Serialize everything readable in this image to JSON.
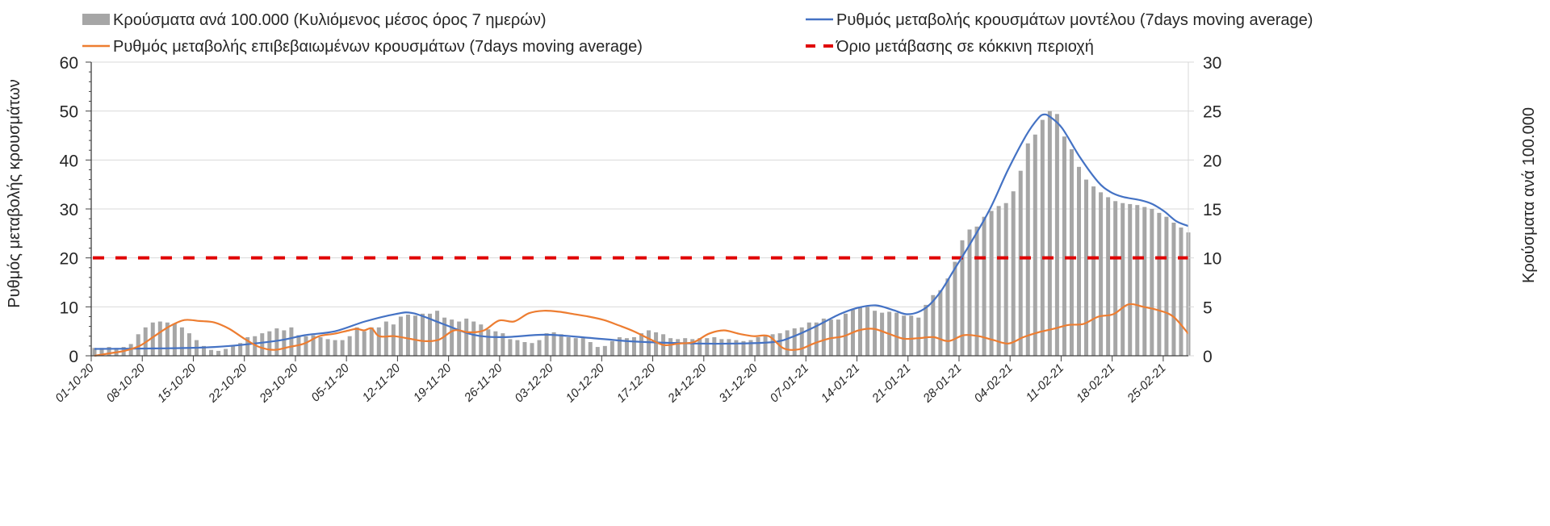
{
  "chart_data": {
    "type": "bar",
    "title": "",
    "legend_placement": "top",
    "legend": [
      {
        "key": "bars",
        "label": "Κρούσματα ανά 100.000 (Κυλιόμενος μέσος όρος 7 ημερών)",
        "color": "#a6a6a6",
        "marker": "bar"
      },
      {
        "key": "model",
        "label": "Ρυθμός μεταβολής κρουσμάτων μοντέλου (7days moving average)",
        "color": "#4472c4",
        "marker": "line"
      },
      {
        "key": "confirmed",
        "label": "Ρυθμός μεταβολής επιβεβαιωμένων κρουσμάτων (7days moving average)",
        "color": "#ed7d31",
        "marker": "line"
      },
      {
        "key": "threshold",
        "label": "Όριο μετάβασης σε κόκκινη περιοχή",
        "color": "#e00000",
        "marker": "dash"
      }
    ],
    "ylabel": "Ρυθμός μεταβολής κρουσμάτων",
    "y2label": "Κρούσματα ανά 100.000",
    "ylim": [
      0,
      60
    ],
    "y2lim": [
      0,
      30
    ],
    "yticks": [
      0,
      10,
      20,
      30,
      40,
      50,
      60
    ],
    "y2ticks": [
      0,
      5,
      10,
      15,
      20,
      25,
      30
    ],
    "grid": true,
    "x_start": "01-10-20",
    "n_days": 151,
    "xtick_labels": [
      "01-10-20",
      "08-10-20",
      "15-10-20",
      "22-10-20",
      "29-10-20",
      "05-11-20",
      "12-11-20",
      "19-11-20",
      "26-11-20",
      "03-12-20",
      "10-12-20",
      "17-12-20",
      "24-12-20",
      "31-12-20",
      "07-01-21",
      "14-01-21",
      "21-01-21",
      "28-01-21",
      "04-02-21",
      "11-02-21",
      "18-02-21",
      "25-02-21"
    ],
    "threshold_value": 20,
    "series": [
      {
        "name": "Κρούσματα ανά 100.000 (Κυλιόμενος μέσος όρος 7 ημερών)",
        "axis": "right",
        "type": "bar",
        "keyframes": [
          [
            0,
            0.8
          ],
          [
            1,
            0.8
          ],
          [
            2,
            0.9
          ],
          [
            3,
            0.8
          ],
          [
            4,
            0.9
          ],
          [
            5,
            1.2
          ],
          [
            6,
            2.2
          ],
          [
            7,
            2.9
          ],
          [
            8,
            3.4
          ],
          [
            9,
            3.5
          ],
          [
            10,
            3.4
          ],
          [
            11,
            3.3
          ],
          [
            12,
            2.9
          ],
          [
            13,
            2.3
          ],
          [
            14,
            1.6
          ],
          [
            15,
            1.0
          ],
          [
            16,
            0.6
          ],
          [
            17,
            0.5
          ],
          [
            18,
            0.7
          ],
          [
            19,
            1.0
          ],
          [
            20,
            1.3
          ],
          [
            21,
            1.9
          ],
          [
            22,
            2.0
          ],
          [
            23,
            2.3
          ],
          [
            24,
            2.5
          ],
          [
            25,
            2.8
          ],
          [
            26,
            2.6
          ],
          [
            27,
            2.9
          ],
          [
            28,
            2.1
          ],
          [
            29,
            2.0
          ],
          [
            30,
            2.1
          ],
          [
            31,
            1.9
          ],
          [
            32,
            1.7
          ],
          [
            33,
            1.6
          ],
          [
            34,
            1.6
          ],
          [
            35,
            2.0
          ],
          [
            36,
            2.9
          ],
          [
            37,
            2.5
          ],
          [
            38,
            2.9
          ],
          [
            39,
            2.9
          ],
          [
            40,
            3.5
          ],
          [
            41,
            3.2
          ],
          [
            42,
            4.0
          ],
          [
            43,
            4.2
          ],
          [
            44,
            4.1
          ],
          [
            45,
            4.3
          ],
          [
            46,
            4.3
          ],
          [
            47,
            4.6
          ],
          [
            48,
            3.9
          ],
          [
            49,
            3.7
          ],
          [
            50,
            3.5
          ],
          [
            51,
            3.8
          ],
          [
            52,
            3.5
          ],
          [
            53,
            3.2
          ],
          [
            54,
            2.7
          ],
          [
            55,
            2.5
          ],
          [
            56,
            2.3
          ],
          [
            57,
            1.7
          ],
          [
            58,
            1.6
          ],
          [
            59,
            1.4
          ],
          [
            60,
            1.3
          ],
          [
            61,
            1.6
          ],
          [
            62,
            2.3
          ],
          [
            63,
            2.4
          ],
          [
            64,
            2.2
          ],
          [
            65,
            1.9
          ],
          [
            66,
            1.8
          ],
          [
            67,
            1.8
          ],
          [
            68,
            1.4
          ],
          [
            69,
            0.9
          ],
          [
            70,
            1.0
          ],
          [
            71,
            1.5
          ],
          [
            72,
            1.9
          ],
          [
            73,
            1.8
          ],
          [
            74,
            1.9
          ],
          [
            75,
            2.3
          ],
          [
            76,
            2.6
          ],
          [
            77,
            2.4
          ],
          [
            78,
            2.2
          ],
          [
            79,
            1.8
          ],
          [
            80,
            1.7
          ],
          [
            81,
            1.8
          ],
          [
            82,
            1.7
          ],
          [
            83,
            1.8
          ],
          [
            84,
            1.8
          ],
          [
            85,
            1.9
          ],
          [
            86,
            1.7
          ],
          [
            87,
            1.7
          ],
          [
            88,
            1.6
          ],
          [
            89,
            1.5
          ],
          [
            90,
            1.6
          ],
          [
            91,
            1.9
          ],
          [
            92,
            2.1
          ],
          [
            93,
            2.2
          ],
          [
            94,
            2.3
          ],
          [
            95,
            2.6
          ],
          [
            96,
            2.8
          ],
          [
            97,
            2.9
          ],
          [
            98,
            3.4
          ],
          [
            99,
            3.4
          ],
          [
            100,
            3.8
          ],
          [
            101,
            3.7
          ],
          [
            102,
            3.7
          ],
          [
            103,
            4.3
          ],
          [
            104,
            4.7
          ],
          [
            105,
            5.0
          ],
          [
            106,
            5.0
          ],
          [
            107,
            4.6
          ],
          [
            108,
            4.4
          ],
          [
            109,
            4.5
          ],
          [
            110,
            4.4
          ],
          [
            111,
            4.1
          ],
          [
            112,
            4.1
          ],
          [
            113,
            3.9
          ],
          [
            114,
            5.2
          ],
          [
            115,
            6.2
          ],
          [
            116,
            6.7
          ],
          [
            117,
            7.9
          ],
          [
            118,
            9.6
          ],
          [
            119,
            11.8
          ],
          [
            120,
            12.9
          ],
          [
            121,
            13.2
          ],
          [
            122,
            14.2
          ],
          [
            123,
            14.8
          ],
          [
            124,
            15.3
          ],
          [
            125,
            15.6
          ],
          [
            126,
            16.8
          ],
          [
            127,
            18.9
          ],
          [
            128,
            21.7
          ],
          [
            129,
            22.6
          ],
          [
            130,
            24.1
          ],
          [
            131,
            25.0
          ],
          [
            132,
            24.7
          ],
          [
            133,
            22.4
          ],
          [
            134,
            21.1
          ],
          [
            135,
            19.3
          ],
          [
            136,
            18.0
          ],
          [
            137,
            17.3
          ],
          [
            138,
            16.7
          ],
          [
            139,
            16.2
          ],
          [
            140,
            15.8
          ],
          [
            141,
            15.6
          ],
          [
            142,
            15.5
          ],
          [
            143,
            15.4
          ],
          [
            144,
            15.2
          ],
          [
            145,
            15.0
          ],
          [
            146,
            14.6
          ],
          [
            147,
            14.2
          ],
          [
            148,
            13.6
          ],
          [
            149,
            13.1
          ],
          [
            150,
            12.6
          ]
        ]
      },
      {
        "name": "Ρυθμός μεταβολής κρουσμάτων μοντέλου (7days moving average)",
        "axis": "left",
        "type": "line",
        "keyframes": [
          [
            0,
            1.4
          ],
          [
            10,
            1.5
          ],
          [
            20,
            1.8
          ],
          [
            30,
            3.0
          ],
          [
            35,
            4.2
          ],
          [
            40,
            5.0
          ],
          [
            45,
            7.0
          ],
          [
            50,
            8.5
          ],
          [
            53,
            8.7
          ],
          [
            58,
            6.5
          ],
          [
            63,
            4.3
          ],
          [
            68,
            3.8
          ],
          [
            75,
            4.3
          ],
          [
            82,
            3.7
          ],
          [
            90,
            2.9
          ],
          [
            100,
            2.5
          ],
          [
            107,
            2.5
          ],
          [
            113,
            2.8
          ],
          [
            116,
            3.8
          ],
          [
            120,
            6.0
          ],
          [
            124,
            8.5
          ],
          [
            127,
            9.8
          ],
          [
            130,
            10.3
          ],
          [
            133,
            9.3
          ],
          [
            135,
            8.5
          ],
          [
            137,
            8.9
          ],
          [
            139,
            10.5
          ],
          [
            141,
            13.5
          ],
          [
            143,
            17.5
          ],
          [
            146,
            23.5
          ],
          [
            149,
            30.0
          ],
          [
            152,
            38.0
          ],
          [
            155,
            45.0
          ],
          [
            157,
            48.5
          ],
          [
            158,
            49.3
          ],
          [
            159,
            48.8
          ],
          [
            161,
            46.5
          ],
          [
            164,
            40.5
          ],
          [
            167,
            35.5
          ],
          [
            169,
            33.5
          ],
          [
            171,
            32.5
          ],
          [
            174,
            31.8
          ],
          [
            176,
            31.0
          ],
          [
            178,
            29.5
          ],
          [
            180,
            27.5
          ],
          [
            182,
            26.5
          ]
        ],
        "day_scale": [
          182,
          150
        ]
      },
      {
        "name": "Ρυθμός μεταβολής επιβεβαιωμένων κρουσμάτων (7days moving average)",
        "axis": "left",
        "type": "line",
        "keyframes": [
          [
            0,
            0
          ],
          [
            2,
            0.5
          ],
          [
            4,
            1.0
          ],
          [
            6,
            2.0
          ],
          [
            8,
            4.0
          ],
          [
            10,
            6.0
          ],
          [
            12,
            7.3
          ],
          [
            14,
            7.1
          ],
          [
            16,
            6.8
          ],
          [
            18,
            5.5
          ],
          [
            20,
            3.5
          ],
          [
            22,
            1.8
          ],
          [
            24,
            1.2
          ],
          [
            26,
            1.8
          ],
          [
            28,
            2.5
          ],
          [
            30,
            4.0
          ],
          [
            32,
            4.5
          ],
          [
            34,
            5.2
          ],
          [
            35,
            5.5
          ],
          [
            36,
            5.2
          ],
          [
            37,
            5.6
          ],
          [
            38,
            4.0
          ],
          [
            40,
            4.0
          ],
          [
            42,
            3.5
          ],
          [
            44,
            3.0
          ],
          [
            46,
            3.3
          ],
          [
            48,
            5.2
          ],
          [
            50,
            4.8
          ],
          [
            52,
            5.2
          ],
          [
            54,
            7.2
          ],
          [
            56,
            7.0
          ],
          [
            58,
            8.7
          ],
          [
            60,
            9.2
          ],
          [
            62,
            9.0
          ],
          [
            64,
            8.5
          ],
          [
            66,
            8.0
          ],
          [
            68,
            7.3
          ],
          [
            70,
            6.2
          ],
          [
            72,
            5.0
          ],
          [
            74,
            3.5
          ],
          [
            76,
            2.2
          ],
          [
            78,
            2.5
          ],
          [
            80,
            2.8
          ],
          [
            82,
            4.5
          ],
          [
            84,
            5.2
          ],
          [
            86,
            4.5
          ],
          [
            88,
            4.0
          ],
          [
            90,
            4.0
          ],
          [
            92,
            1.5
          ],
          [
            94,
            1.3
          ],
          [
            96,
            2.5
          ],
          [
            98,
            3.5
          ],
          [
            100,
            4.0
          ],
          [
            102,
            5.2
          ],
          [
            104,
            5.5
          ],
          [
            106,
            4.5
          ],
          [
            108,
            3.5
          ],
          [
            110,
            3.6
          ],
          [
            112,
            3.8
          ],
          [
            114,
            3.0
          ],
          [
            116,
            4.2
          ],
          [
            118,
            4.0
          ],
          [
            120,
            3.2
          ],
          [
            122,
            2.5
          ],
          [
            124,
            3.8
          ],
          [
            126,
            4.8
          ],
          [
            128,
            5.5
          ],
          [
            130,
            6.3
          ],
          [
            132,
            6.5
          ],
          [
            134,
            8.0
          ],
          [
            136,
            8.5
          ],
          [
            138,
            10.5
          ],
          [
            140,
            10.0
          ],
          [
            142,
            9.3
          ],
          [
            144,
            8.0
          ],
          [
            146,
            4.5
          ]
        ],
        "day_scale": [
          146,
          150
        ]
      }
    ]
  }
}
